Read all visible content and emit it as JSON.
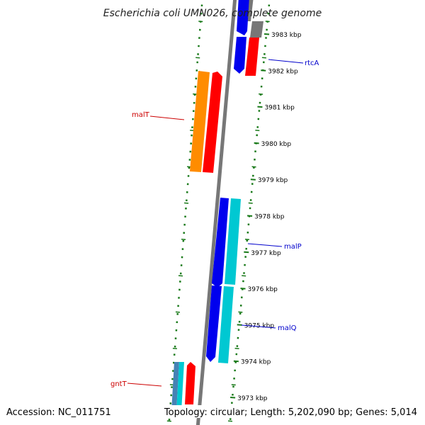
{
  "title": "Escherichia coli UMN026, complete genome",
  "footer": {
    "accession": "Accession: NC_011751",
    "summary": "Topology: circular; Length: 5,202,090 bp; Genes: 5,014"
  },
  "colors": {
    "backbone": "#777777",
    "ticks": "#1a7a1a",
    "forward_cds": "#0000ee",
    "reverse_cds": "#ff0000",
    "orange_feature": "#ff8c00",
    "cyan_feature": "#00c8d2",
    "steel_feature": "#4682b4",
    "gray_feature": "#777777",
    "label_forward": "#0000cc",
    "label_reverse": "#cc0000"
  },
  "ticks": [
    {
      "label": "3983 kbp"
    },
    {
      "label": "3982 kbp"
    },
    {
      "label": "3981 kbp"
    },
    {
      "label": "3980 kbp"
    },
    {
      "label": "3979 kbp"
    },
    {
      "label": "3978 kbp"
    },
    {
      "label": "3977 kbp"
    },
    {
      "label": "3976 kbp"
    },
    {
      "label": "3975 kbp"
    },
    {
      "label": "3974 kbp"
    },
    {
      "label": "3973 kbp"
    }
  ],
  "genes": [
    {
      "name": "rtcA",
      "strand": "forward"
    },
    {
      "name": "malT",
      "strand": "reverse"
    },
    {
      "name": "malP",
      "strand": "forward"
    },
    {
      "name": "malQ",
      "strand": "forward"
    },
    {
      "name": "gntT",
      "strand": "reverse"
    }
  ]
}
